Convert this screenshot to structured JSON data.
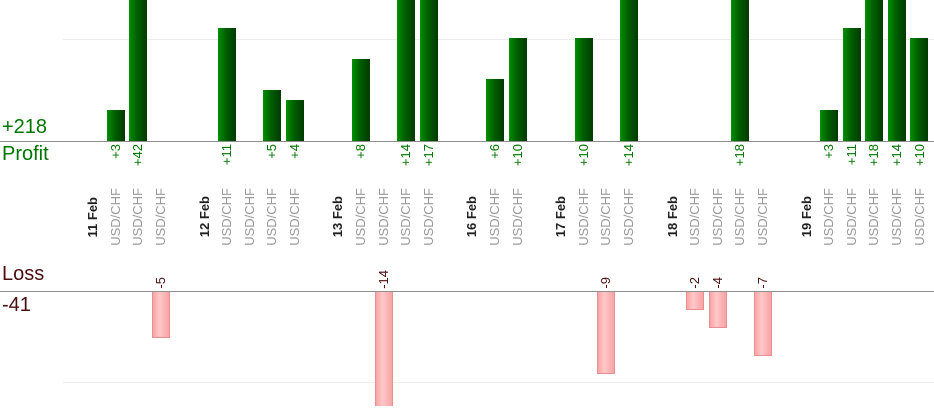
{
  "chart_data": {
    "type": "bar",
    "orientation": "vertical",
    "description_visible_text_only": "profit-loss per trade grouped by date",
    "profit_section": {
      "total_label": "+218",
      "axis_label": "Profit",
      "gridline_value_estimate": 10
    },
    "loss_section": {
      "axis_label": "Loss",
      "total_label": "-41",
      "gridline_value_estimate": -10
    },
    "groups": [
      {
        "date": "11 Feb",
        "trades": [
          {
            "instrument": "USD/CHF",
            "value": 3,
            "label": "+3"
          },
          {
            "instrument": "USD/CHF",
            "value": 42,
            "label": "+42"
          },
          {
            "instrument": "USD/CHF",
            "value": -5,
            "label": "-5"
          }
        ]
      },
      {
        "date": "12 Feb",
        "trades": [
          {
            "instrument": "USD/CHF",
            "value": 11,
            "label": "+11"
          },
          {
            "instrument": "USD/CHF",
            "value": 0,
            "label": ""
          },
          {
            "instrument": "USD/CHF",
            "value": 5,
            "label": "+5"
          },
          {
            "instrument": "USD/CHF",
            "value": 4,
            "label": "+4"
          }
        ]
      },
      {
        "date": "13 Feb",
        "trades": [
          {
            "instrument": "USD/CHF",
            "value": 8,
            "label": "+8"
          },
          {
            "instrument": "USD/CHF",
            "value": -14,
            "label": "-14"
          },
          {
            "instrument": "USD/CHF",
            "value": 14,
            "label": "+14"
          },
          {
            "instrument": "USD/CHF",
            "value": 17,
            "label": "+17"
          }
        ]
      },
      {
        "date": "16 Feb",
        "trades": [
          {
            "instrument": "USD/CHF",
            "value": 6,
            "label": "+6"
          },
          {
            "instrument": "USD/CHF",
            "value": 10,
            "label": "+10"
          }
        ]
      },
      {
        "date": "17 Feb",
        "trades": [
          {
            "instrument": "USD/CHF",
            "value": 10,
            "label": "+10"
          },
          {
            "instrument": "USD/CHF",
            "value": -9,
            "label": "-9"
          },
          {
            "instrument": "USD/CHF",
            "value": 14,
            "label": "+14"
          }
        ]
      },
      {
        "date": "18 Feb",
        "trades": [
          {
            "instrument": "USD/CHF",
            "value": -2,
            "label": "-2"
          },
          {
            "instrument": "USD/CHF",
            "value": -4,
            "label": "-4"
          },
          {
            "instrument": "USD/CHF",
            "value": 18,
            "label": "+18"
          },
          {
            "instrument": "USD/CHF",
            "value": -7,
            "label": "-7"
          }
        ]
      },
      {
        "date": "19 Feb",
        "trades": [
          {
            "instrument": "USD/CHF",
            "value": 3,
            "label": "+3"
          },
          {
            "instrument": "USD/CHF",
            "value": 11,
            "label": "+11"
          },
          {
            "instrument": "USD/CHF",
            "value": 18,
            "label": "+18"
          },
          {
            "instrument": "USD/CHF",
            "value": 14,
            "label": "+14"
          },
          {
            "instrument": "USD/CHF",
            "value": 10,
            "label": "+10"
          }
        ]
      }
    ],
    "colors": {
      "profit_bar_light": "#029002",
      "profit_bar_mid": "#015e01",
      "profit_bar_dark": "#013a01",
      "profit_text": "#007500",
      "loss_bar_light": "#ffc8c8",
      "loss_bar_dark": "#f7a3a3",
      "loss_bar_border": "#e98f8f",
      "loss_text": "#4b0e0e",
      "date_text": "#222222",
      "instrument_text": "#9a9a9a",
      "axis_line": "#8f8f8f",
      "grid_line": "#ececec"
    }
  }
}
